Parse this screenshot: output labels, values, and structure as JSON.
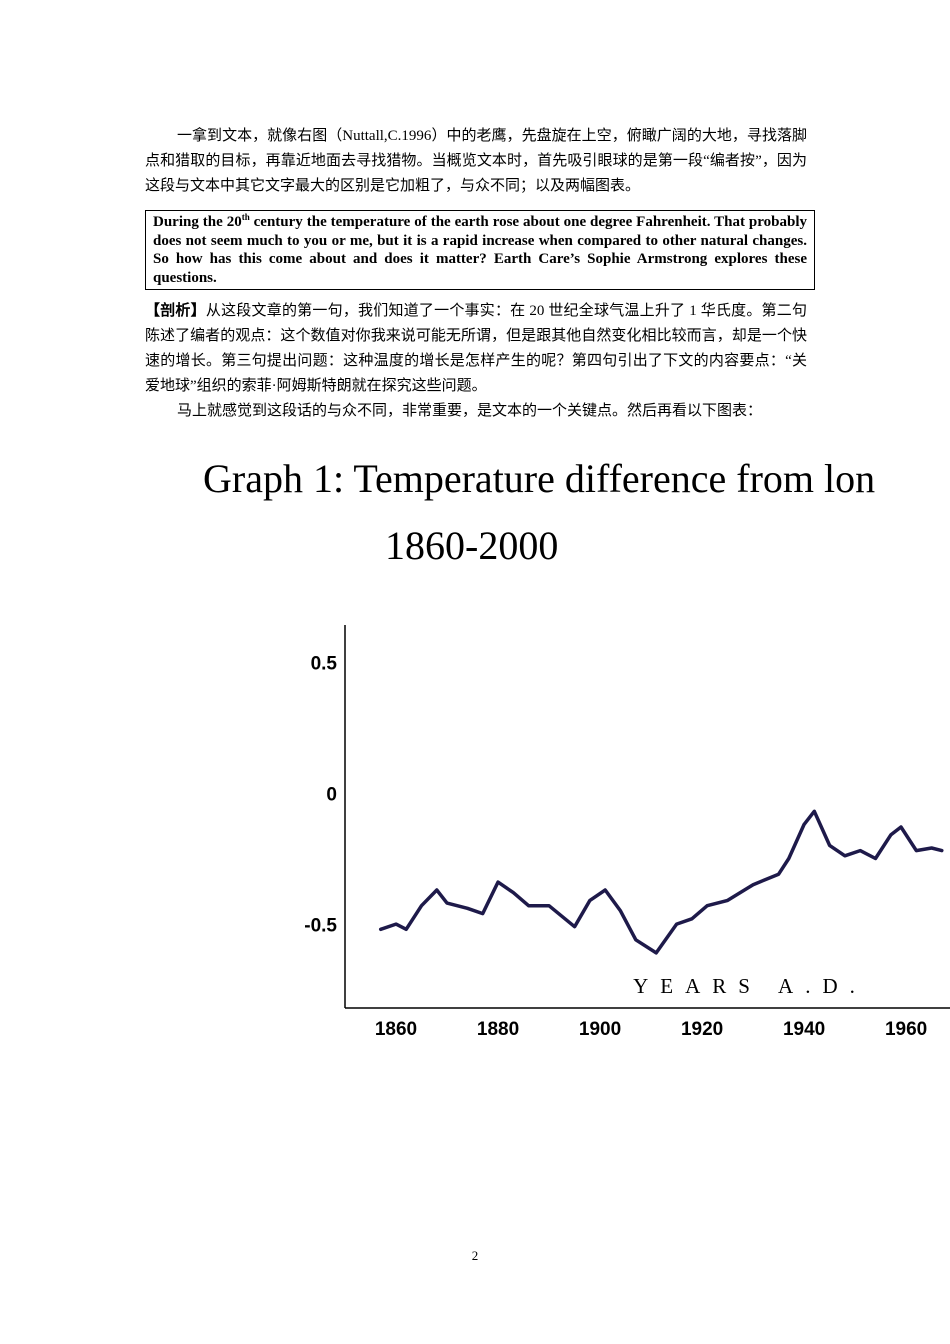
{
  "paragraph1": "一拿到文本，就像右图（Nuttall,C.1996）中的老鹰，先盘旋在上空，俯瞰广阔的大地，寻找落脚点和猎取的目标，再靠近地面去寻找猎物。当概览文本时，首先吸引眼球的是第一段“编者按”，因为这段与文本中其它文字最大的区别是它加粗了，与众不同；以及两幅图表。",
  "box": {
    "text_before": "During the 20",
    "superscript": "th",
    "text_after": " century the temperature of the earth rose about one degree Fahrenheit. That probably does not seem much to you or me, but it is a rapid increase when compared to other natural changes. So how has this come about and does it matter? Earth Care’s Sophie Armstrong explores these questions."
  },
  "analysis": {
    "label": "【剖析】",
    "text": "从这段文章的第一句，我们知道了一个事实：在 20 世纪全球气温上升了 1 华氏度。第二句陈述了编者的观点：这个数值对你我来说可能无所谓，但是跟其他自然变化相比较而言，却是一个快速的增长。第三句提出问题：这种温度的增长是怎样产生的呢？第四句引出了下文的内容要点：“关爱地球”组织的索菲·阿姆斯特朗就在探究这些问题。"
  },
  "paragraph3": "马上就感觉到这段话的与众不同，非常重要，是文本的一个关键点。然后再看以下图表：",
  "chart_data": {
    "type": "line",
    "title": "Graph 1:  Temperature difference from lon",
    "subtitle": "1860-2000",
    "x_label": "YEARS A.D.",
    "x": [
      1857,
      1860,
      1862,
      1865,
      1868,
      1870,
      1874,
      1877,
      1880,
      1883,
      1886,
      1890,
      1895,
      1898,
      1901,
      1904,
      1907,
      1911,
      1915,
      1918,
      1921,
      1925,
      1930,
      1935,
      1937,
      1940,
      1942,
      1945,
      1948,
      1951,
      1954,
      1957,
      1959,
      1962,
      1965,
      1967
    ],
    "values": [
      -0.51,
      -0.49,
      -0.51,
      -0.42,
      -0.36,
      -0.41,
      -0.43,
      -0.45,
      -0.33,
      -0.37,
      -0.42,
      -0.42,
      -0.5,
      -0.4,
      -0.36,
      -0.44,
      -0.55,
      -0.6,
      -0.49,
      -0.47,
      -0.42,
      -0.4,
      -0.34,
      -0.3,
      -0.24,
      -0.11,
      -0.06,
      -0.19,
      -0.23,
      -0.21,
      -0.24,
      -0.15,
      -0.12,
      -0.21,
      -0.2,
      -0.21
    ],
    "color": "#1e1a4a",
    "xlim": [
      1850,
      1968.6
    ],
    "ylim": [
      -0.81,
      0.65
    ],
    "xticks": [
      1860,
      1880,
      1900,
      1920,
      1940,
      1960
    ],
    "yticks": [
      0.5,
      0,
      -0.5
    ]
  },
  "page_number": "2"
}
